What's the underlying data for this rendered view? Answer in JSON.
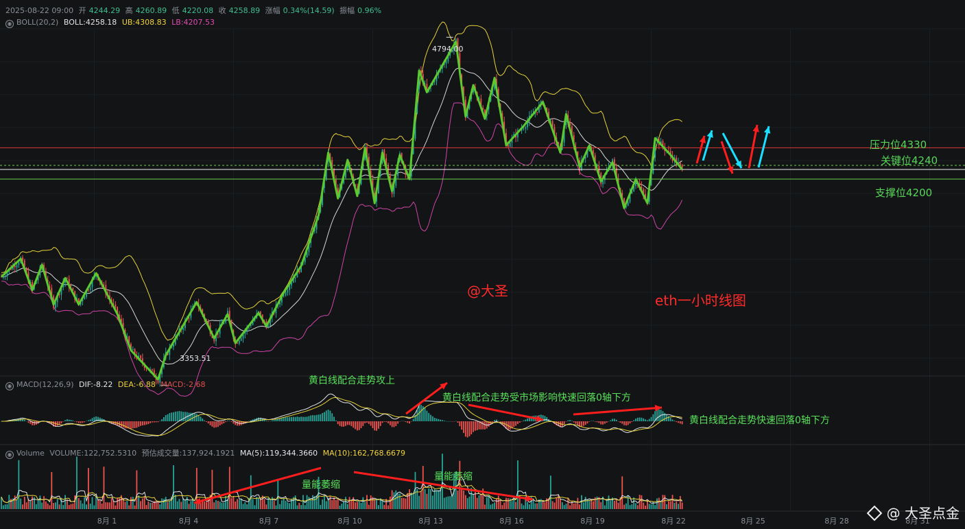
{
  "header": {
    "datetime": "2025-08-22 09:00",
    "open_label": "开",
    "open": "4244.29",
    "high_label": "高",
    "high": "4260.89",
    "low_label": "低",
    "low": "4220.08",
    "close_label": "收",
    "close": "4258.89",
    "change_label": "涨幅",
    "change": "0.34%(14.59)",
    "amp_label": "振幅",
    "amp": "0.96%"
  },
  "boll": {
    "name": "BOLL(20,2)",
    "mid": "BOLL:4258.18",
    "ub": "UB:4308.83",
    "lb": "LB:4207.53"
  },
  "macd": {
    "name": "MACD(12,26,9)",
    "dif": "DIF:-8.22",
    "dea": "DEA:-6.88",
    "macd": "MACD:-2.68"
  },
  "volume": {
    "name": "Volume",
    "vol": "VOLUME:122,752.5310",
    "est": "预估成交量:137,924.1921",
    "ma5": "MA(5):119,344.3660",
    "ma10": "MA(10):162,768.6679"
  },
  "annotations": {
    "resistance": "压力位4330",
    "key": "关键位4240",
    "support": "支撑位4200",
    "author": "@大圣",
    "title_note": "eth一小时线图",
    "macd_note1": "黄白线配合走势攻上",
    "macd_note2": "黄白线配合走势受市场影响快速回落0轴下方",
    "macd_note3": "黄白线配合走势快速回落0轴下方",
    "vol_note1": "量能萎缩",
    "vol_note2": "量能萎缩",
    "high_price": "4794.00",
    "low_price": "3353.51",
    "watermark": "@ 大圣点金"
  },
  "colors": {
    "bg": "#121416",
    "up": "#26a69a",
    "down": "#ef5350",
    "zigzag": "#5cc92e",
    "ub": "#e8d33a",
    "lb": "#d045a8",
    "mid": "#d8d8d8",
    "res": "#e03a3a",
    "sup": "#6fd04a"
  },
  "chart_data": {
    "type": "candlestick",
    "x_ticks": [
      "8月 1",
      "8月 4",
      "8月 7",
      "8月 10",
      "8月 13",
      "8月 16",
      "8月 19",
      "8月 22",
      "8月 25",
      "8月 28",
      "8月 31"
    ],
    "levels": {
      "resistance": 4330,
      "key": 4240,
      "support": 4200
    },
    "zigzag": [
      {
        "t": 0,
        "p": 3795
      },
      {
        "t": 10,
        "p": 3870
      },
      {
        "t": 16,
        "p": 3740
      },
      {
        "t": 21,
        "p": 3845
      },
      {
        "t": 27,
        "p": 3680
      },
      {
        "t": 33,
        "p": 3790
      },
      {
        "t": 40,
        "p": 3680
      },
      {
        "t": 49,
        "p": 3810
      },
      {
        "t": 60,
        "p": 3640
      },
      {
        "t": 67,
        "p": 3490
      },
      {
        "t": 81,
        "p": 3370
      },
      {
        "t": 85,
        "p": 3470
      },
      {
        "t": 101,
        "p": 3690
      },
      {
        "t": 110,
        "p": 3540
      },
      {
        "t": 117,
        "p": 3640
      },
      {
        "t": 121,
        "p": 3520
      },
      {
        "t": 133,
        "p": 3645
      },
      {
        "t": 137,
        "p": 3590
      },
      {
        "t": 146,
        "p": 3730
      },
      {
        "t": 155,
        "p": 3840
      },
      {
        "t": 164,
        "p": 4050
      },
      {
        "t": 169,
        "p": 4310
      },
      {
        "t": 174,
        "p": 4120
      },
      {
        "t": 179,
        "p": 4280
      },
      {
        "t": 184,
        "p": 4130
      },
      {
        "t": 188,
        "p": 4330
      },
      {
        "t": 193,
        "p": 4100
      },
      {
        "t": 197,
        "p": 4310
      },
      {
        "t": 202,
        "p": 4150
      },
      {
        "t": 206,
        "p": 4300
      },
      {
        "t": 211,
        "p": 4200
      },
      {
        "t": 216,
        "p": 4650
      },
      {
        "t": 220,
        "p": 4560
      },
      {
        "t": 235,
        "p": 4770
      },
      {
        "t": 240,
        "p": 4460
      },
      {
        "t": 244,
        "p": 4590
      },
      {
        "t": 250,
        "p": 4450
      },
      {
        "t": 255,
        "p": 4620
      },
      {
        "t": 261,
        "p": 4340
      },
      {
        "t": 270,
        "p": 4420
      },
      {
        "t": 280,
        "p": 4520
      },
      {
        "t": 289,
        "p": 4310
      },
      {
        "t": 292,
        "p": 4470
      },
      {
        "t": 299,
        "p": 4250
      },
      {
        "t": 304,
        "p": 4340
      },
      {
        "t": 310,
        "p": 4190
      },
      {
        "t": 316,
        "p": 4270
      },
      {
        "t": 322,
        "p": 4080
      },
      {
        "t": 328,
        "p": 4200
      },
      {
        "t": 334,
        "p": 4100
      },
      {
        "t": 338,
        "p": 4370
      },
      {
        "t": 346,
        "p": 4300
      },
      {
        "t": 352,
        "p": 4240
      }
    ],
    "high_point": {
      "t": 235,
      "p": 4794.0
    },
    "low_point": {
      "t": 81,
      "p": 3353.51
    }
  }
}
